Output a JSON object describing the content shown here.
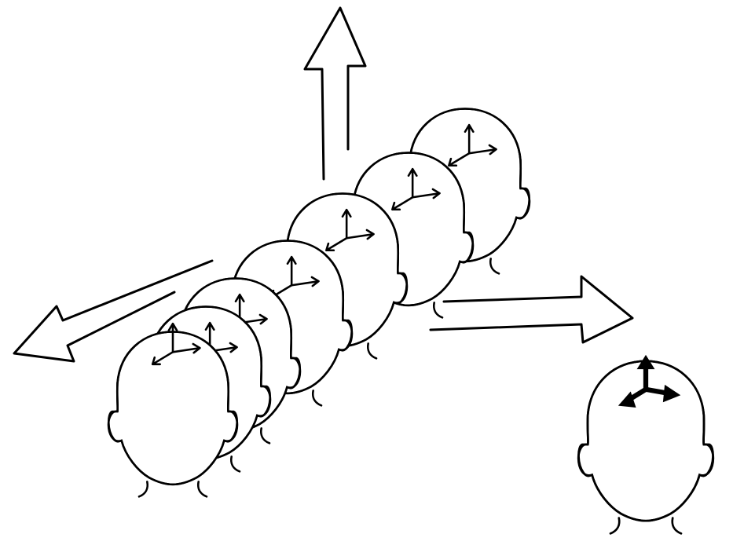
{
  "diagram": {
    "kind": "line-drawing",
    "text": "",
    "colors": {
      "ink": "#000000",
      "paper": "#ffffff"
    },
    "elements": {
      "world_axes": [
        {
          "name": "world-axis-up-arrow",
          "direction": "up"
        },
        {
          "name": "world-axis-left-arrow",
          "direction": "left"
        },
        {
          "name": "world-axis-right-arrow",
          "direction": "right"
        }
      ],
      "head_sequence_count": 7,
      "head_sequence_frame": "small-local-axes",
      "standalone_head_frame": "bold-local-axes"
    }
  }
}
